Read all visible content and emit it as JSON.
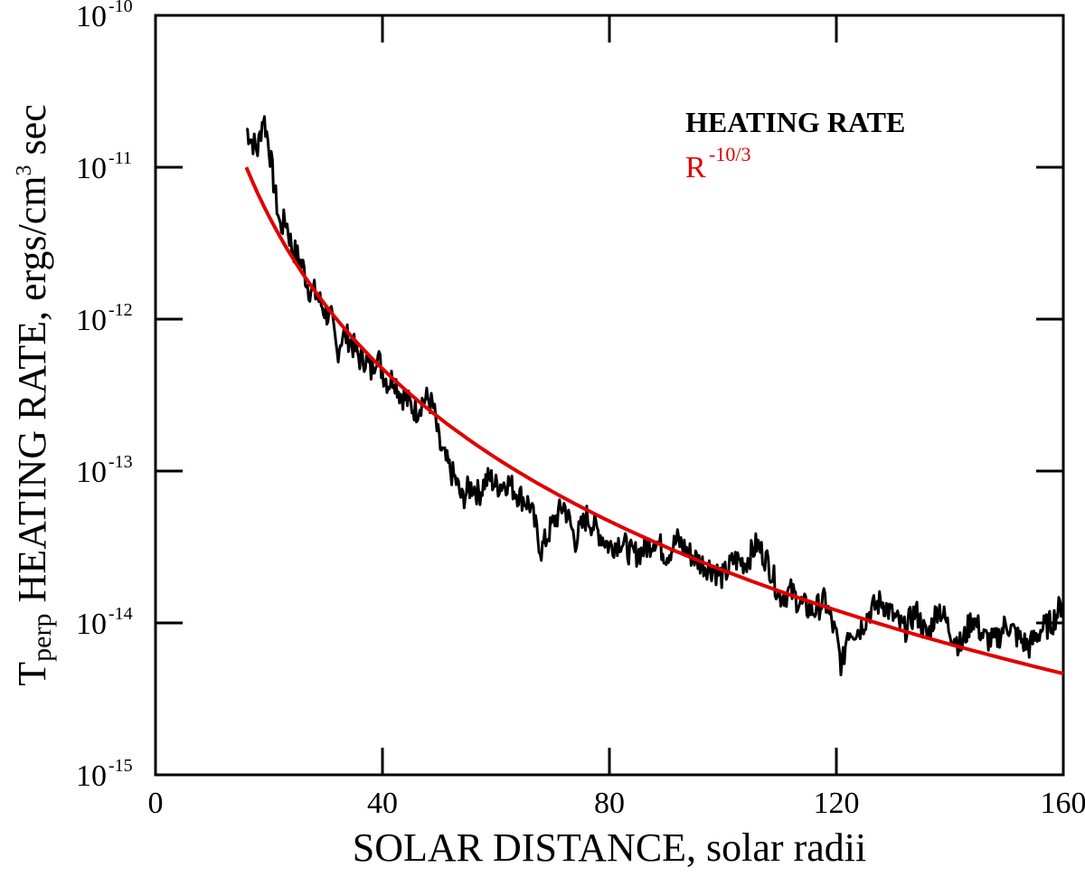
{
  "chart_data": {
    "type": "line",
    "xlabel": "SOLAR DISTANCE, solar radii",
    "ylabel_main": "HEATING RATE, ergs/cm",
    "ylabel_sup": "3",
    "ylabel_end": " sec",
    "ylabel_prefix": "T",
    "ylabel_prefix_sub": "perp",
    "xlim": [
      0,
      160
    ],
    "ylim_log10": [
      -15,
      -10
    ],
    "x_ticks": [
      {
        "value": 0,
        "label": "0"
      },
      {
        "value": 40,
        "label": "40"
      },
      {
        "value": 80,
        "label": "80"
      },
      {
        "value": 120,
        "label": "120"
      },
      {
        "value": 160,
        "label": "160"
      }
    ],
    "y_ticks": [
      {
        "exp": -10,
        "base": "10",
        "sup": "-10"
      },
      {
        "exp": -11,
        "base": "10",
        "sup": "-11"
      },
      {
        "exp": -12,
        "base": "10",
        "sup": "-12"
      },
      {
        "exp": -13,
        "base": "10",
        "sup": "-13"
      },
      {
        "exp": -14,
        "base": "10",
        "sup": "-14"
      },
      {
        "exp": -15,
        "base": "10",
        "sup": "-15"
      }
    ],
    "series": [
      {
        "name": "HEATING RATE",
        "color": "#000000",
        "x": [
          16,
          17,
          18,
          19,
          20,
          21,
          22,
          23,
          24,
          25,
          26,
          27,
          28,
          29,
          30,
          31,
          32,
          33,
          34,
          35,
          36,
          37,
          38,
          39,
          40,
          41,
          42,
          43,
          44,
          45,
          46,
          47,
          48,
          49,
          50,
          51,
          52,
          53,
          54,
          55,
          56,
          57,
          58,
          59,
          60,
          62,
          64,
          66,
          68,
          70,
          72,
          74,
          76,
          78,
          80,
          82,
          84,
          86,
          88,
          90,
          92,
          94,
          96,
          98,
          100,
          102,
          104,
          106,
          108,
          110,
          112,
          114,
          116,
          118,
          120,
          121,
          122,
          124,
          126,
          128,
          130,
          132,
          134,
          136,
          138,
          140,
          142,
          144,
          146,
          148,
          150,
          152,
          154,
          156,
          158,
          160
        ],
        "values": [
          1.8e-11,
          1.5e-11,
          1.3e-11,
          2.2e-11,
          1.4e-11,
          7e-12,
          4e-12,
          4.5e-12,
          3e-12,
          2.6e-12,
          2.2e-12,
          1.6e-12,
          1.5e-12,
          1.3e-12,
          1.1e-12,
          1e-12,
          6e-13,
          8e-13,
          7.5e-13,
          6.5e-13,
          5.5e-13,
          5.5e-13,
          4.5e-13,
          6e-13,
          4.5e-13,
          3.8e-13,
          4.2e-13,
          3.3e-13,
          3e-13,
          2.7e-13,
          2.5e-13,
          2.9e-13,
          3e-13,
          2.6e-13,
          1.5e-13,
          1.2e-13,
          1e-13,
          8.5e-14,
          6.5e-14,
          7.5e-14,
          8e-14,
          7e-14,
          8.5e-14,
          9e-14,
          8e-14,
          8.5e-14,
          7e-14,
          6e-14,
          3e-14,
          4.5e-14,
          6e-14,
          3.5e-14,
          5e-14,
          4e-14,
          3.2e-14,
          3.5e-14,
          2.8e-14,
          3e-14,
          3.6e-14,
          2.8e-14,
          3.5e-14,
          2.9e-14,
          2.5e-14,
          2.3e-14,
          2e-14,
          2.6e-14,
          2.5e-14,
          3.3e-14,
          2.5e-14,
          1.5e-14,
          1.6e-14,
          1.3e-14,
          1.2e-14,
          1.4e-14,
          8e-15,
          5e-15,
          9e-15,
          9e-15,
          1.2e-14,
          1.4e-14,
          1.1e-14,
          9e-15,
          1.2e-14,
          8e-15,
          1.3e-14,
          9e-15,
          7e-15,
          1.1e-14,
          8e-15,
          7.5e-15,
          1e-14,
          8e-15,
          7e-15,
          9e-15,
          1e-14,
          1.4e-14
        ]
      },
      {
        "name": "R^-10/3 fit",
        "color": "#e00000",
        "x_start": 16,
        "x_end": 160,
        "y_at_start": 1e-11,
        "power": -3.3333
      }
    ],
    "legend": {
      "heating_label": "HEATING RATE",
      "fit_base": "R",
      "fit_exp": "-10/3"
    }
  }
}
